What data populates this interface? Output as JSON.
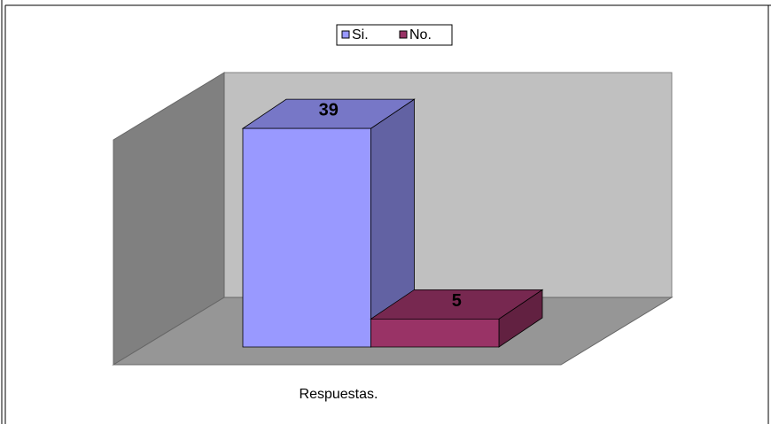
{
  "chart_data": {
    "type": "bar3d",
    "categories": [
      "Respuestas."
    ],
    "series": [
      {
        "name": "Si.",
        "color": "#9999ff",
        "values": [
          39
        ]
      },
      {
        "name": "No.",
        "color": "#993366",
        "values": [
          5
        ]
      }
    ],
    "legend": "top"
  }
}
